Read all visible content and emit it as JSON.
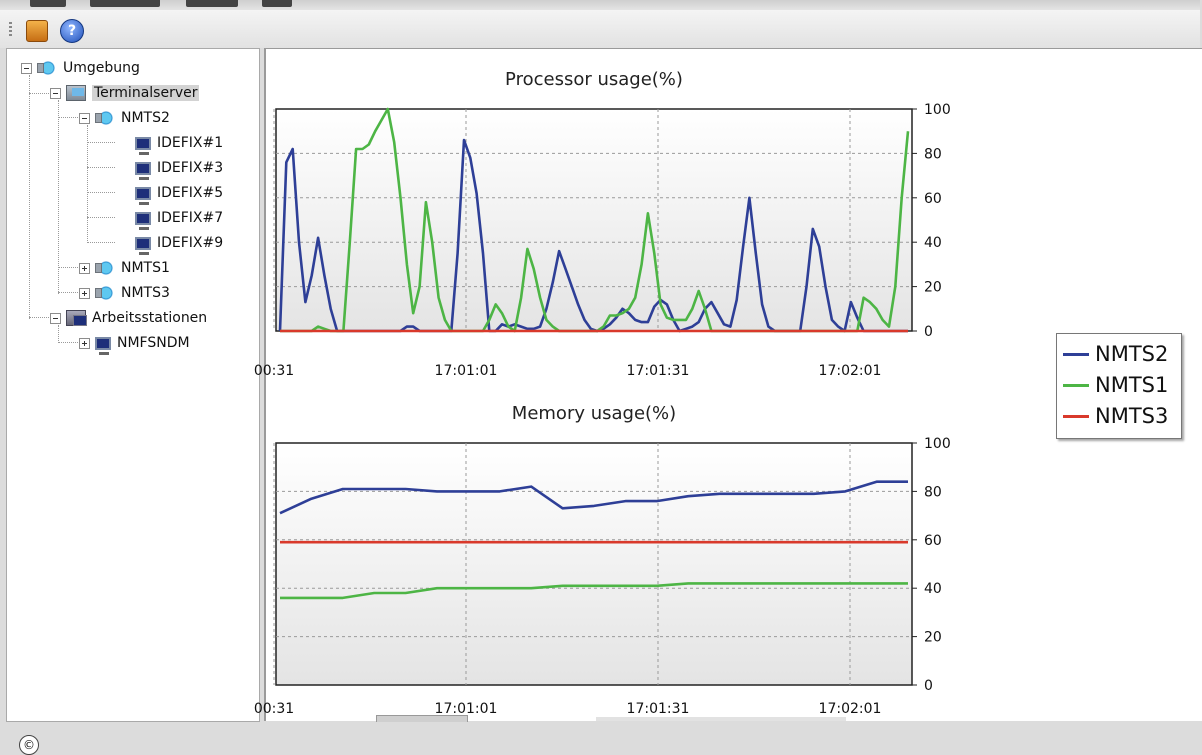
{
  "toolbar": {
    "buttons": [
      {
        "name": "book-icon"
      },
      {
        "name": "help-icon",
        "glyph": "?"
      }
    ]
  },
  "tree": {
    "root": "Umgebung",
    "terminalserver": "Terminalserver",
    "nmts2": "NMTS2",
    "idefix": [
      "IDEFIX#1",
      "IDEFIX#3",
      "IDEFIX#5",
      "IDEFIX#7",
      "IDEFIX#9"
    ],
    "nmts1": "NMTS1",
    "nmts3": "NMTS3",
    "arbeitsstationen": "Arbeitsstationen",
    "nmfsndm": "NMFSNDM"
  },
  "copyright_symbol": "©",
  "legend": [
    {
      "name": "NMTS2",
      "color": "#2e3f97"
    },
    {
      "name": "NMTS1",
      "color": "#4db545"
    },
    {
      "name": "NMTS3",
      "color": "#d9392b"
    }
  ],
  "chart_data": [
    {
      "type": "line",
      "title": "Processor usage(%)",
      "x_tick_labels": [
        "00:31",
        "17:01:01",
        "17:01:31",
        "17:02:01"
      ],
      "ylim": [
        0,
        100
      ],
      "y_ticks": [
        0,
        20,
        40,
        60,
        80,
        100
      ],
      "grid": true,
      "x": [
        0,
        1,
        2,
        3,
        4,
        5,
        6,
        7,
        8,
        9,
        10,
        11,
        12,
        13,
        14,
        15,
        16,
        17,
        18,
        19,
        20,
        21,
        22,
        23,
        24,
        25,
        26,
        27,
        28,
        29,
        30,
        31,
        32,
        33,
        34,
        35,
        36,
        37,
        38,
        39,
        40,
        41,
        42,
        43,
        44,
        45,
        46,
        47,
        48,
        49,
        50,
        51,
        52,
        53,
        54,
        55,
        56,
        57,
        58,
        59,
        60,
        61,
        62,
        63,
        64,
        65,
        66,
        67,
        68,
        69,
        70,
        71,
        72,
        73,
        74,
        75,
        76,
        77,
        78,
        79,
        80,
        81,
        82,
        83,
        84,
        85,
        86,
        87,
        88,
        89,
        90,
        91,
        92,
        93,
        94,
        95,
        96,
        97,
        98,
        99
      ],
      "series": [
        {
          "name": "NMTS2",
          "color": "#2e3f97",
          "values": [
            0,
            76,
            82,
            40,
            13,
            25,
            42,
            25,
            10,
            0,
            0,
            0,
            0,
            0,
            0,
            0,
            0,
            0,
            0,
            0,
            2,
            2,
            0,
            0,
            0,
            0,
            0,
            0,
            35,
            86,
            78,
            62,
            35,
            0,
            0,
            3,
            2,
            3,
            2,
            1,
            1,
            2,
            10,
            22,
            36,
            28,
            20,
            12,
            5,
            1,
            0,
            1,
            3,
            6,
            10,
            8,
            5,
            4,
            4,
            11,
            14,
            12,
            5,
            0,
            1,
            2,
            4,
            10,
            13,
            8,
            3,
            2,
            14,
            38,
            60,
            35,
            12,
            2,
            0,
            0,
            0,
            0,
            0,
            20,
            46,
            38,
            20,
            5,
            2,
            0,
            13,
            6,
            0,
            0,
            0,
            0,
            0,
            0,
            0,
            0
          ]
        },
        {
          "name": "NMTS1",
          "color": "#4db545",
          "values": [
            0,
            0,
            0,
            0,
            0,
            0,
            2,
            1,
            0,
            0,
            0,
            40,
            82,
            82,
            84,
            90,
            95,
            100,
            85,
            60,
            30,
            8,
            20,
            58,
            40,
            15,
            5,
            0,
            0,
            0,
            0,
            0,
            0,
            5,
            12,
            8,
            2,
            0,
            15,
            37,
            28,
            15,
            5,
            2,
            0,
            0,
            0,
            0,
            0,
            0,
            0,
            2,
            7,
            7,
            8,
            10,
            15,
            30,
            53,
            35,
            12,
            6,
            5,
            5,
            5,
            10,
            18,
            10,
            0,
            0,
            0,
            0,
            0,
            0,
            0,
            0,
            0,
            0,
            0,
            0,
            0,
            0,
            0,
            0,
            0,
            0,
            0,
            0,
            0,
            0,
            0,
            0,
            15,
            13,
            10,
            5,
            2,
            20,
            60,
            90
          ]
        },
        {
          "name": "NMTS3",
          "color": "#d9392b",
          "values": [
            0,
            0,
            0,
            0,
            0,
            0,
            0,
            0,
            0,
            0,
            0,
            0,
            0,
            0,
            0,
            0,
            0,
            0,
            0,
            0,
            0,
            0,
            0,
            0,
            0,
            0,
            0,
            0,
            0,
            0,
            0,
            0,
            0,
            0,
            0,
            0,
            0,
            0,
            0,
            0,
            0,
            0,
            0,
            0,
            0,
            0,
            0,
            0,
            0,
            0,
            0,
            0,
            0,
            0,
            0,
            0,
            0,
            0,
            0,
            0,
            0,
            0,
            0,
            0,
            0,
            0,
            0,
            0,
            0,
            0,
            0,
            0,
            0,
            0,
            0,
            0,
            0,
            0,
            0,
            0,
            0,
            0,
            0,
            0,
            0,
            0,
            0,
            0,
            0,
            0,
            0,
            0,
            0,
            0,
            0,
            0,
            0,
            0,
            0,
            0
          ]
        }
      ]
    },
    {
      "type": "line",
      "title": "Memory usage(%)",
      "x_tick_labels": [
        "00:31",
        "17:01:01",
        "17:01:31",
        "17:02:01"
      ],
      "ylim": [
        0,
        100
      ],
      "y_ticks": [
        0,
        20,
        40,
        60,
        80,
        100
      ],
      "grid": true,
      "x": [
        0,
        5,
        10,
        15,
        20,
        25,
        30,
        35,
        40,
        45,
        50,
        55,
        60,
        65,
        70,
        75,
        80,
        85,
        90,
        95,
        100
      ],
      "series": [
        {
          "name": "NMTS2",
          "color": "#2e3f97",
          "values": [
            71,
            77,
            81,
            81,
            81,
            80,
            80,
            80,
            82,
            73,
            74,
            76,
            76,
            78,
            79,
            79,
            79,
            79,
            80,
            84,
            84
          ]
        },
        {
          "name": "NMTS1",
          "color": "#4db545",
          "values": [
            36,
            36,
            36,
            38,
            38,
            40,
            40,
            40,
            40,
            41,
            41,
            41,
            41,
            42,
            42,
            42,
            42,
            42,
            42,
            42,
            42
          ]
        },
        {
          "name": "NMTS3",
          "color": "#d9392b",
          "values": [
            59,
            59,
            59,
            59,
            59,
            59,
            59,
            59,
            59,
            59,
            59,
            59,
            59,
            59,
            59,
            59,
            59,
            59,
            59,
            59,
            59
          ]
        }
      ]
    }
  ]
}
